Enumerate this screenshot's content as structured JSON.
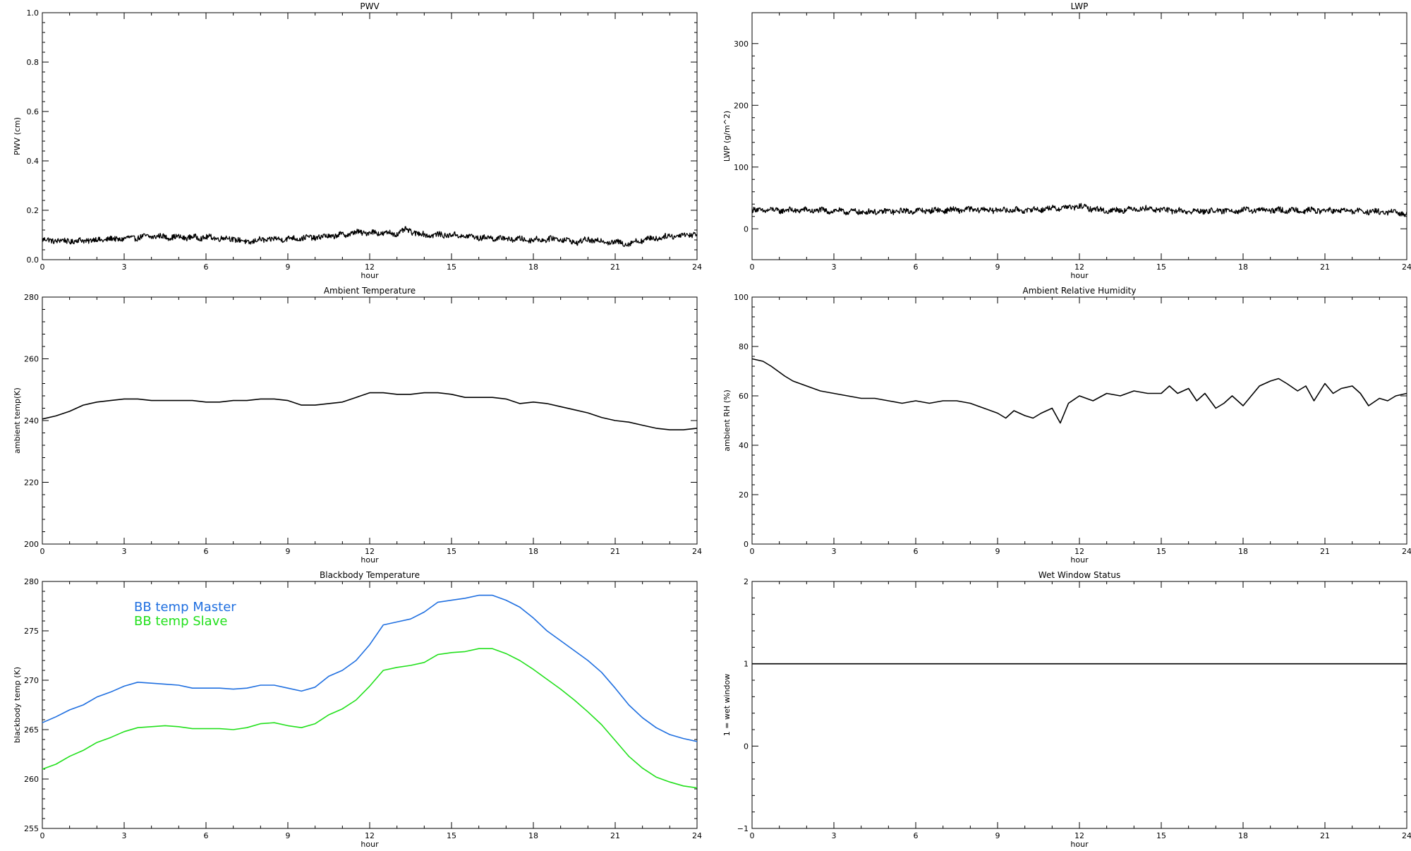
{
  "chart_data": [
    {
      "type": "line",
      "title": "PWV",
      "xlabel": "hour",
      "ylabel": "PWV (cm)",
      "xlim": [
        0,
        24
      ],
      "ylim": [
        0,
        1.0
      ],
      "xticks": [
        0,
        3,
        6,
        9,
        12,
        15,
        18,
        21,
        24
      ],
      "yticks": [
        "0.0",
        "0.2",
        "0.4",
        "0.6",
        "0.8",
        "1.0"
      ],
      "noisy": true,
      "series": [
        {
          "color": "#000000",
          "x": [
            0,
            1,
            2,
            3,
            4,
            5,
            6,
            7,
            7.5,
            8,
            9,
            10,
            11,
            11.5,
            12,
            13,
            13.3,
            14,
            15,
            16,
            17,
            18,
            19,
            19.5,
            20,
            21,
            21.5,
            22,
            23,
            24
          ],
          "y": [
            0.08,
            0.075,
            0.08,
            0.085,
            0.095,
            0.09,
            0.09,
            0.085,
            0.07,
            0.08,
            0.085,
            0.09,
            0.1,
            0.11,
            0.11,
            0.105,
            0.12,
            0.1,
            0.1,
            0.09,
            0.085,
            0.08,
            0.085,
            0.07,
            0.08,
            0.07,
            0.065,
            0.08,
            0.095,
            0.105
          ]
        }
      ]
    },
    {
      "type": "line",
      "title": "LWP",
      "xlabel": "hour",
      "ylabel": "LWP (g/m^2)",
      "xlim": [
        0,
        24
      ],
      "ylim": [
        -50,
        350
      ],
      "xticks": [
        0,
        3,
        6,
        9,
        12,
        15,
        18,
        21,
        24
      ],
      "yticks": [
        "0",
        "100",
        "200",
        "300"
      ],
      "noisy": true,
      "series": [
        {
          "color": "#000000",
          "x": [
            0,
            2,
            3,
            4,
            6,
            8,
            10,
            12,
            13,
            14.3,
            16,
            18,
            20,
            22,
            24
          ],
          "y": [
            30,
            30,
            29,
            27,
            29,
            31,
            30,
            36,
            29,
            33,
            28,
            30,
            30,
            29,
            25
          ]
        }
      ]
    },
    {
      "type": "line",
      "title": "Ambient Temperature",
      "xlabel": "hour",
      "ylabel": "ambient temp(K)",
      "xlim": [
        0,
        24
      ],
      "ylim": [
        200,
        280
      ],
      "xticks": [
        0,
        3,
        6,
        9,
        12,
        15,
        18,
        21,
        24
      ],
      "yticks": [
        "200",
        "220",
        "240",
        "260",
        "280"
      ],
      "series": [
        {
          "color": "#000000",
          "x": [
            0,
            0.5,
            1,
            1.5,
            2,
            2.5,
            3,
            3.5,
            4,
            4.5,
            5,
            5.5,
            6,
            6.5,
            7,
            7.5,
            8,
            8.5,
            9,
            9.5,
            10,
            10.5,
            11,
            11.5,
            12,
            12.5,
            13,
            13.5,
            14,
            14.5,
            15,
            15.5,
            16,
            16.5,
            17,
            17.5,
            18,
            18.5,
            19,
            19.5,
            20,
            20.5,
            21,
            21.5,
            22,
            22.5,
            23,
            23.5,
            24
          ],
          "y": [
            240.5,
            241.5,
            243,
            245,
            246,
            246.5,
            247,
            247,
            246.5,
            246.5,
            246.5,
            246.5,
            246,
            246,
            246.5,
            246.5,
            247,
            247,
            246.5,
            245,
            245,
            245.5,
            246,
            247.5,
            249,
            249,
            248.5,
            248.5,
            249,
            249,
            248.5,
            247.5,
            247.5,
            247.5,
            247,
            245.5,
            246,
            245.5,
            244.5,
            243.5,
            242.5,
            241,
            240,
            239.5,
            238.5,
            237.5,
            237,
            237,
            237.5
          ]
        }
      ]
    },
    {
      "type": "line",
      "title": "Ambient Relative Humidity",
      "xlabel": "hour",
      "ylabel": "ambient RH (%)",
      "xlim": [
        0,
        24
      ],
      "ylim": [
        0,
        100
      ],
      "xticks": [
        0,
        3,
        6,
        9,
        12,
        15,
        18,
        21,
        24
      ],
      "yticks": [
        "0",
        "20",
        "40",
        "60",
        "80",
        "100"
      ],
      "series": [
        {
          "color": "#000000",
          "x": [
            0,
            0.4,
            0.7,
            1.2,
            1.5,
            2,
            2.5,
            3,
            3.5,
            4,
            4.5,
            5,
            5.5,
            6,
            6.5,
            7,
            7.5,
            8,
            8.5,
            9,
            9.3,
            9.6,
            10,
            10.3,
            10.6,
            11,
            11.3,
            11.6,
            12,
            12.5,
            13,
            13.5,
            14,
            14.5,
            15,
            15.3,
            15.6,
            16,
            16.3,
            16.6,
            17,
            17.3,
            17.6,
            18,
            18.3,
            18.6,
            19,
            19.3,
            19.6,
            20,
            20.3,
            20.6,
            21,
            21.3,
            21.6,
            22,
            22.3,
            22.6,
            23,
            23.3,
            23.6,
            24
          ],
          "y": [
            75,
            74,
            72,
            68,
            66,
            64,
            62,
            61,
            60,
            59,
            59,
            58,
            57,
            58,
            57,
            58,
            58,
            57,
            55,
            53,
            51,
            54,
            52,
            51,
            53,
            55,
            49,
            57,
            60,
            58,
            61,
            60,
            62,
            61,
            61,
            64,
            61,
            63,
            58,
            61,
            55,
            57,
            60,
            56,
            60,
            64,
            66,
            67,
            65,
            62,
            64,
            58,
            65,
            61,
            63,
            64,
            61,
            56,
            59,
            58,
            60,
            61
          ]
        }
      ]
    },
    {
      "type": "line",
      "title": "Blackbody Temperature",
      "xlabel": "hour",
      "ylabel": "blackbody temp (K)",
      "xlim": [
        0,
        24
      ],
      "ylim": [
        255,
        280
      ],
      "xticks": [
        0,
        3,
        6,
        9,
        12,
        15,
        18,
        21,
        24
      ],
      "yticks": [
        "255",
        "260",
        "265",
        "270",
        "275",
        "280"
      ],
      "legend": "top-left",
      "series": [
        {
          "name": "BB temp Master",
          "color": "#1f6fe0",
          "x": [
            0,
            0.5,
            1,
            1.5,
            2,
            2.5,
            3,
            3.5,
            4,
            4.5,
            5,
            5.5,
            6,
            6.5,
            7,
            7.5,
            8,
            8.5,
            9,
            9.5,
            10,
            10.5,
            11,
            11.5,
            12,
            12.5,
            13,
            13.5,
            14,
            14.5,
            15,
            15.5,
            16,
            16.5,
            17,
            17.5,
            18,
            18.5,
            19,
            19.5,
            20,
            20.5,
            21,
            21.5,
            22,
            22.5,
            23,
            23.5,
            24
          ],
          "y": [
            265.7,
            266.3,
            267,
            267.5,
            268.3,
            268.8,
            269.4,
            269.8,
            269.7,
            269.6,
            269.5,
            269.2,
            269.2,
            269.2,
            269.1,
            269.2,
            269.5,
            269.5,
            269.2,
            268.9,
            269.3,
            270.4,
            271,
            272,
            273.6,
            275.6,
            275.9,
            276.2,
            276.9,
            277.9,
            278.1,
            278.3,
            278.6,
            278.6,
            278.1,
            277.4,
            276.3,
            275,
            274,
            273,
            272,
            270.8,
            269.2,
            267.5,
            266.2,
            265.2,
            264.5,
            264.1,
            263.8
          ]
        },
        {
          "name": "BB temp Slave",
          "color": "#22e01c",
          "x": [
            0,
            0.5,
            1,
            1.5,
            2,
            2.5,
            3,
            3.5,
            4,
            4.5,
            5,
            5.5,
            6,
            6.5,
            7,
            7.5,
            8,
            8.5,
            9,
            9.5,
            10,
            10.5,
            11,
            11.5,
            12,
            12.5,
            13,
            13.5,
            14,
            14.5,
            15,
            15.5,
            16,
            16.5,
            17,
            17.5,
            18,
            18.5,
            19,
            19.5,
            20,
            20.5,
            21,
            21.5,
            22,
            22.5,
            23,
            23.5,
            24
          ],
          "y": [
            261,
            261.5,
            262.3,
            262.9,
            263.7,
            264.2,
            264.8,
            265.2,
            265.3,
            265.4,
            265.3,
            265.1,
            265.1,
            265.1,
            265,
            265.2,
            265.6,
            265.7,
            265.4,
            265.2,
            265.6,
            266.5,
            267.1,
            268,
            269.4,
            271,
            271.3,
            271.5,
            271.8,
            272.6,
            272.8,
            272.9,
            273.2,
            273.2,
            272.7,
            272,
            271.1,
            270.1,
            269.1,
            268,
            266.8,
            265.5,
            263.9,
            262.3,
            261.1,
            260.2,
            259.7,
            259.3,
            259.1
          ]
        }
      ]
    },
    {
      "type": "line",
      "title": "Wet Window Status",
      "xlabel": "hour",
      "ylabel": "1 = wet window",
      "xlim": [
        0,
        24
      ],
      "ylim": [
        -1,
        2
      ],
      "xticks": [
        0,
        3,
        6,
        9,
        12,
        15,
        18,
        21,
        24
      ],
      "yticks": [
        "−1",
        "0",
        "1",
        "2"
      ],
      "series": [
        {
          "color": "#000000",
          "x": [
            0,
            24
          ],
          "y": [
            1,
            1
          ]
        }
      ]
    }
  ]
}
